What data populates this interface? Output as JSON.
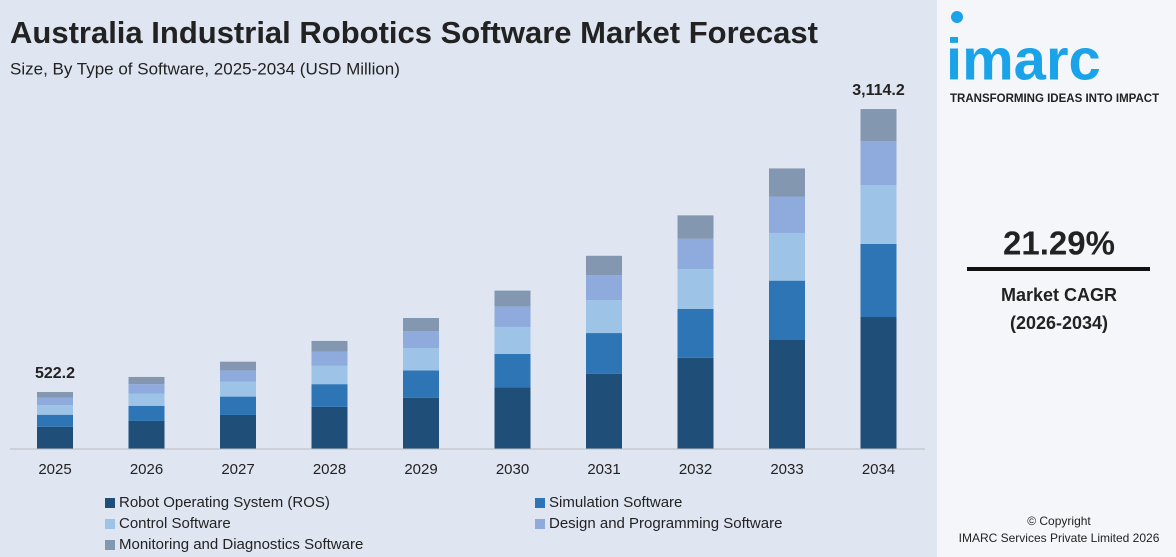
{
  "chart_data": {
    "type": "stacked_bar",
    "title": "Australia Industrial Robotics Software Market Forecast",
    "subtitle": "Size, By Type of Software, 2025-2034 (USD Million)",
    "categories": [
      "2025",
      "2026",
      "2027",
      "2028",
      "2029",
      "2030",
      "2031",
      "2032",
      "2033",
      "2034"
    ],
    "series": [
      {
        "name": "Robot Operating System (ROS)",
        "color": "#1f4e79",
        "values": [
          204,
          257,
          312,
          386,
          468,
          566,
          690,
          835,
          1002,
          1209
        ]
      },
      {
        "name": "Simulation Software",
        "color": "#2e75b6",
        "values": [
          110,
          139,
          168,
          208,
          252,
          305,
          372,
          449,
          540,
          669
        ]
      },
      {
        "name": "Control Software",
        "color": "#9dc3e6",
        "values": [
          89,
          112,
          136,
          168,
          204,
          247,
          301,
          364,
          437,
          540
        ]
      },
      {
        "name": "Design and Programming Software",
        "color": "#8faadc",
        "values": [
          68,
          86,
          104,
          129,
          156,
          188,
          230,
          278,
          334,
          403
        ]
      },
      {
        "name": "Monitoring and Diagnostics Software",
        "color": "#8497b0",
        "values": [
          51,
          66,
          80,
          99,
          120,
          145,
          177,
          214,
          257,
          293
        ]
      }
    ],
    "annotations": [
      {
        "category": "2025",
        "value": 522.2
      },
      {
        "category": "2034",
        "value": 3114.2,
        "label": "3,114.2"
      }
    ],
    "ylim": [
      0,
      3380
    ]
  },
  "side_panel": {
    "logo": "imarc",
    "tagline": "TRANSFORMING IDEAS INTO IMPACT",
    "cagr": "21.29%",
    "cagr_label": "Market CAGR",
    "cagr_period": "(2026-2034)",
    "copyright": "© Copyright",
    "company": "IMARC Services Private Limited 2026"
  }
}
